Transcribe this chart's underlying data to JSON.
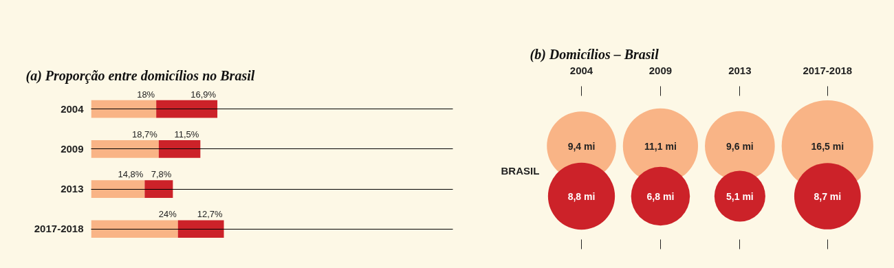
{
  "chart_data": [
    {
      "type": "bar",
      "orientation": "horizontal",
      "stacked": true,
      "title": "(a) Proporção entre domicílios no Brasil",
      "categories": [
        "2004",
        "2009",
        "2013",
        "2017-2018"
      ],
      "xlim": [
        0,
        100
      ],
      "tick_labels": "y",
      "grid": "y",
      "data_labels": true,
      "series": [
        {
          "color": "#f9b486",
          "values": [
            18,
            18.7,
            14.8,
            24
          ],
          "value_labels": [
            "18%",
            "18,7%",
            "14,8%",
            "24%"
          ]
        },
        {
          "color": "#cc2229",
          "values": [
            16.9,
            11.5,
            7.8,
            12.7
          ],
          "value_labels": [
            "16,9%",
            "11,5%",
            "7,8%",
            "12,7%"
          ]
        }
      ]
    },
    {
      "type": "other",
      "title": "(b) Domicílios – Brasil",
      "ylabel": "BRASIL",
      "categories": [
        "2004",
        "2009",
        "2013",
        "2017-2018"
      ],
      "series": [
        {
          "color": "#f9b486",
          "values": [
            9.4,
            11.1,
            9.6,
            16.5
          ],
          "value_labels": [
            "9,4 mi",
            "11,1 mi",
            "9,6 mi",
            "16,5 mi"
          ]
        },
        {
          "color": "#cc2229",
          "values": [
            8.8,
            6.8,
            5.1,
            8.7
          ],
          "value_labels": [
            "8,8 mi",
            "6,8 mi",
            "5,1 mi",
            "8,7 mi"
          ]
        }
      ]
    }
  ]
}
